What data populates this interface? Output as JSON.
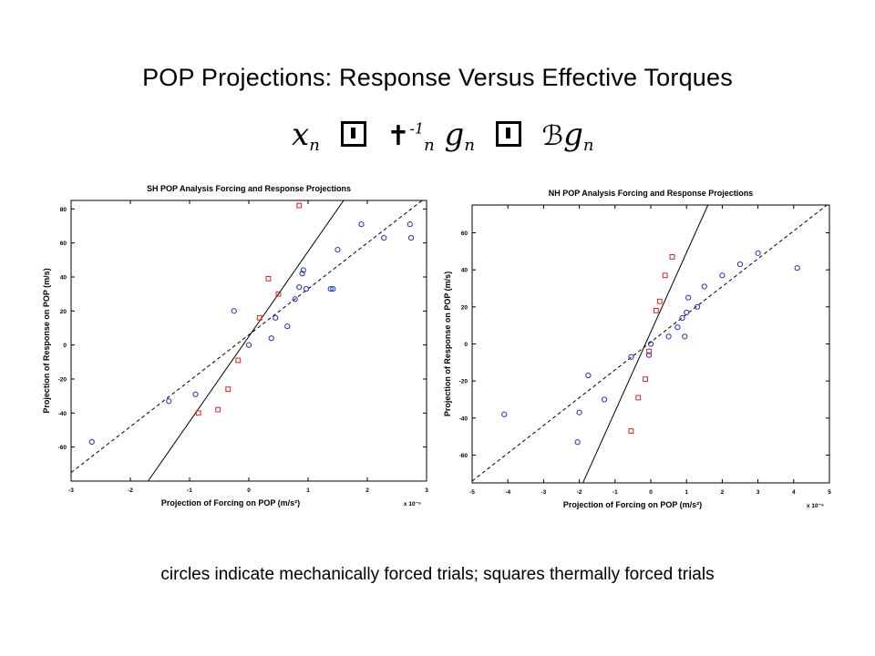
{
  "slide": {
    "title": "POP Projections: Response Versus Effective Torques",
    "caption": "circles indicate mechanically forced trials; squares thermally forced trials",
    "equation": {
      "lhs": "x",
      "lhs_sub": "n",
      "mid_glyph": "✝",
      "mid_sup": "-1",
      "mid_sub": "n",
      "g1": "g",
      "g1_sub": "n",
      "rhs_glyph": "ℬ",
      "g2": "g",
      "g2_sub": "n"
    }
  },
  "colors": {
    "circle": "#1f2fd0",
    "square": "#e02020",
    "line": "#000000"
  },
  "chart_data": [
    {
      "id": "sh",
      "type": "scatter",
      "title": "SH POP Analysis Forcing and Response Projections",
      "xlabel": "Projection of Forcing on POP (m/s²)",
      "x_multiplier": "x 10⁻⁶",
      "ylabel": "Projection of Response on POP (m/s)",
      "xlim": [
        -3,
        3
      ],
      "ylim": [
        -80,
        85
      ],
      "xticks": [
        "-3",
        "-2",
        "-1",
        "0",
        "1",
        "2",
        "3"
      ],
      "yticks": [
        "-60",
        "-40",
        "-20",
        "0",
        "20",
        "40",
        "60",
        "80"
      ],
      "lines": [
        {
          "style": "solid",
          "x": [
            -1.7,
            1.6
          ],
          "y": [
            -80,
            85
          ]
        },
        {
          "style": "dashed",
          "x": [
            -3,
            3
          ],
          "y": [
            -75,
            87
          ]
        }
      ],
      "series": [
        {
          "marker": "circle",
          "points": [
            [
              -2.65,
              -57
            ],
            [
              -1.35,
              -33
            ],
            [
              -0.9,
              -29
            ],
            [
              -0.25,
              20
            ],
            [
              0,
              0
            ],
            [
              0.38,
              4
            ],
            [
              0.45,
              16
            ],
            [
              0.65,
              11
            ],
            [
              0.78,
              27
            ],
            [
              0.85,
              34
            ],
            [
              0.9,
              42
            ],
            [
              0.92,
              44
            ],
            [
              0.97,
              33
            ],
            [
              1.38,
              33
            ],
            [
              1.42,
              33
            ],
            [
              1.5,
              56
            ],
            [
              1.9,
              71
            ],
            [
              2.28,
              63
            ],
            [
              2.72,
              71
            ],
            [
              2.74,
              63
            ]
          ]
        },
        {
          "marker": "square",
          "points": [
            [
              -0.85,
              -40
            ],
            [
              -0.52,
              -38
            ],
            [
              -0.35,
              -26
            ],
            [
              -0.18,
              -9
            ],
            [
              0.18,
              16
            ],
            [
              0.33,
              39
            ],
            [
              0.5,
              30
            ],
            [
              0.85,
              82
            ]
          ]
        }
      ]
    },
    {
      "id": "nh",
      "type": "scatter",
      "title": "NH POP Analysis Forcing and Response Projections",
      "xlabel": "Projection of Forcing on POP (m/s²)",
      "x_multiplier": "x 10⁻⁶",
      "ylabel": "Projection of Response on POP (m/s)",
      "xlim": [
        -5,
        5
      ],
      "ylim": [
        -75,
        75
      ],
      "xticks": [
        "-5",
        "-4",
        "-3",
        "-2",
        "-1",
        "0",
        "1",
        "2",
        "3",
        "4",
        "5"
      ],
      "yticks": [
        "-60",
        "-40",
        "-20",
        "0",
        "20",
        "40",
        "60"
      ],
      "lines": [
        {
          "style": "solid",
          "x": [
            -1.9,
            1.6
          ],
          "y": [
            -75,
            75
          ]
        },
        {
          "style": "dashed",
          "x": [
            -5,
            5
          ],
          "y": [
            -74,
            76
          ]
        }
      ],
      "series": [
        {
          "marker": "circle",
          "points": [
            [
              -4.1,
              -38
            ],
            [
              -2.05,
              -53
            ],
            [
              -2,
              -37
            ],
            [
              -1.75,
              -17
            ],
            [
              -1.3,
              -30
            ],
            [
              -0.55,
              -7
            ],
            [
              -0.05,
              -6
            ],
            [
              0,
              0
            ],
            [
              0.5,
              4
            ],
            [
              0.75,
              9
            ],
            [
              0.88,
              14
            ],
            [
              0.95,
              4
            ],
            [
              1,
              17
            ],
            [
              1.05,
              25
            ],
            [
              1.3,
              20
            ],
            [
              1.5,
              31
            ],
            [
              2,
              37
            ],
            [
              2.5,
              43
            ],
            [
              3,
              49
            ],
            [
              4.1,
              41
            ]
          ]
        },
        {
          "marker": "square",
          "points": [
            [
              -0.55,
              -47
            ],
            [
              -0.35,
              -29
            ],
            [
              -0.15,
              -19
            ],
            [
              -0.05,
              -4
            ],
            [
              0.15,
              18
            ],
            [
              0.25,
              23
            ],
            [
              0.4,
              37
            ],
            [
              0.6,
              47
            ]
          ]
        }
      ]
    }
  ]
}
